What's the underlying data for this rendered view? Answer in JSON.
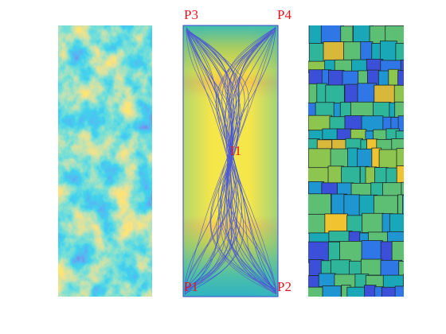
{
  "labels": [
    "P3",
    "P4",
    "I1",
    "P1",
    "P2"
  ]
}
